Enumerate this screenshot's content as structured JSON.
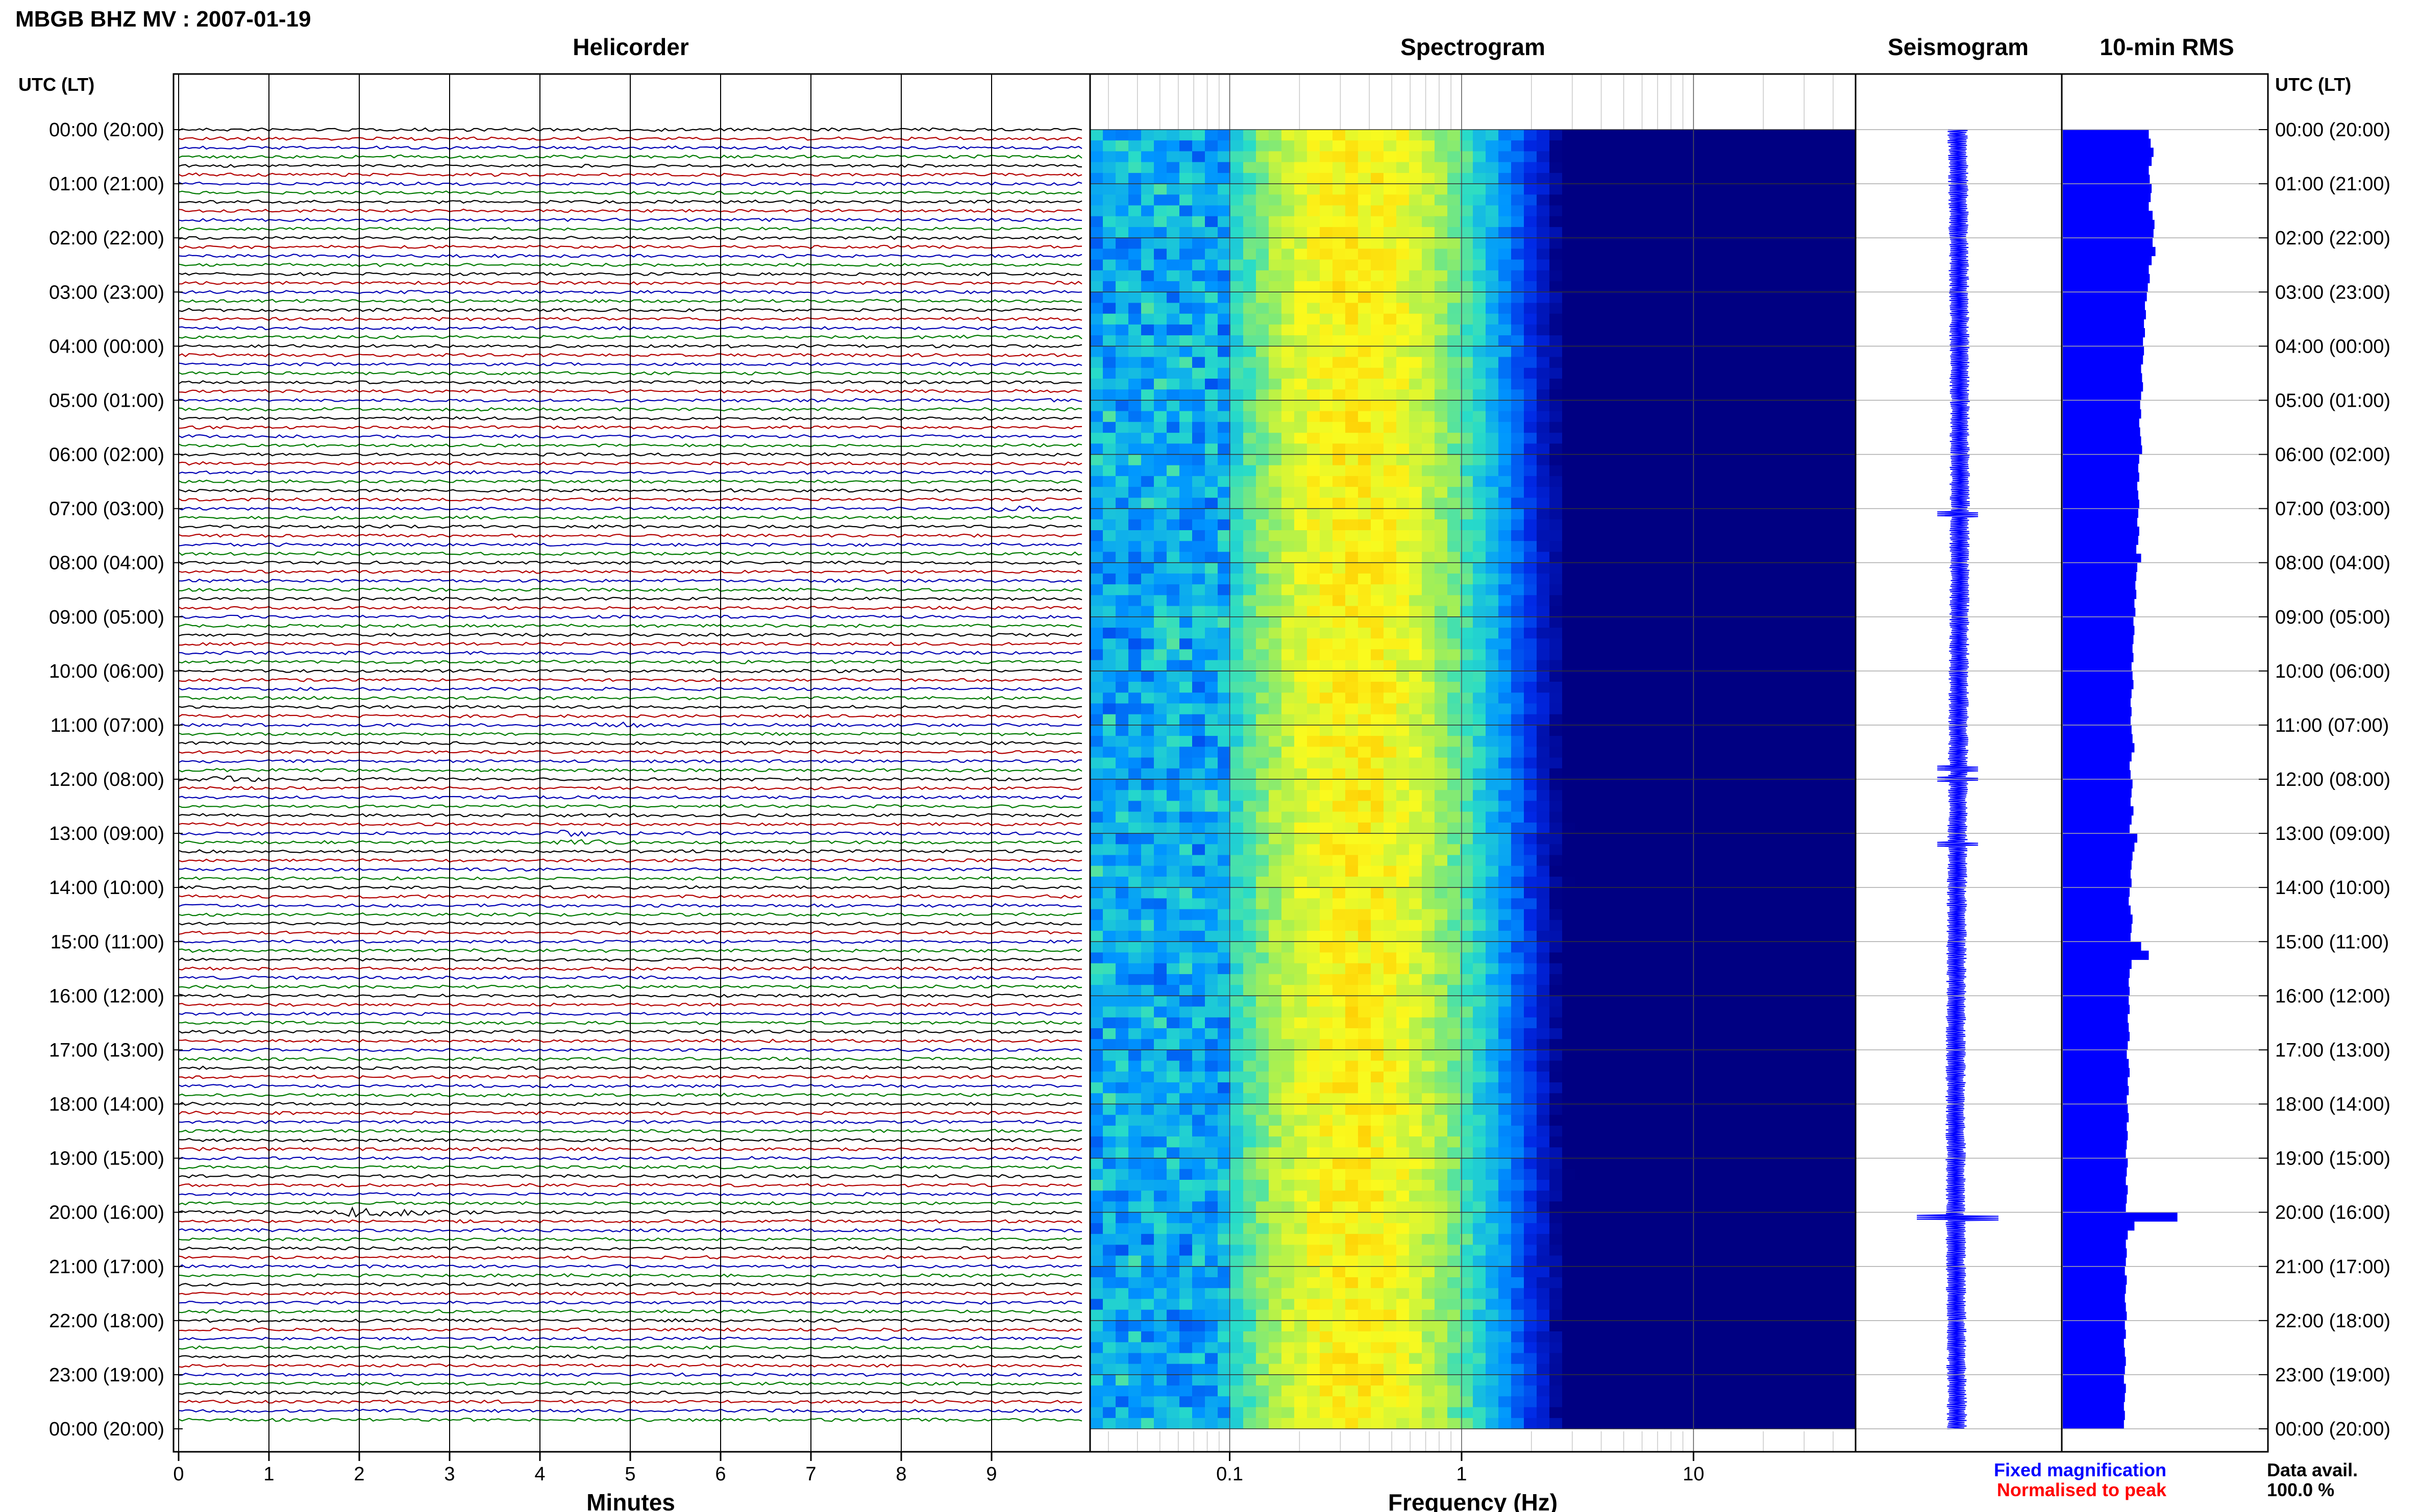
{
  "header": {
    "station_title": "MBGB BHZ MV : 2007-01-19",
    "panel_titles": {
      "helicorder": "Helicorder",
      "spectrogram": "Spectrogram",
      "seismogram": "Seismogram",
      "rms": "10-min RMS"
    },
    "time_axis_label_left": "UTC (LT)",
    "time_axis_label_right": "UTC (LT)"
  },
  "legend": {
    "fixed": "Fixed magnification",
    "normalised": "Normalised to peak",
    "fixed_color": "#0000ff",
    "normalised_color": "#ff0000"
  },
  "data_avail": {
    "label": "Data avail.",
    "value": "100.0 %"
  },
  "colors": {
    "trace_cycle": [
      "#000000",
      "#b30000",
      "#0000b3",
      "#007a00"
    ],
    "rms_bar": "#0000ff",
    "seismogram": "#0000ff"
  },
  "chart_data": [
    {
      "type": "line",
      "name": "helicorder",
      "title": "Helicorder",
      "xlabel": "Minutes",
      "x_ticks": [
        0,
        1,
        2,
        3,
        4,
        5,
        6,
        7,
        8,
        9
      ],
      "xlim": [
        0,
        10
      ],
      "time_ticks": [
        "00:00 (20:00)",
        "01:00 (21:00)",
        "02:00 (22:00)",
        "03:00 (23:00)",
        "04:00 (00:00)",
        "05:00 (01:00)",
        "06:00 (02:00)",
        "07:00 (03:00)",
        "08:00 (04:00)",
        "09:00 (05:00)",
        "10:00 (06:00)",
        "11:00 (07:00)",
        "12:00 (08:00)",
        "13:00 (09:00)",
        "14:00 (10:00)",
        "15:00 (11:00)",
        "16:00 (12:00)",
        "17:00 (13:00)",
        "18:00 (14:00)",
        "19:00 (15:00)",
        "20:00 (16:00)",
        "21:00 (17:00)",
        "22:00 (18:00)",
        "23:00 (19:00)",
        "00:00 (20:00)"
      ],
      "lines_per_hour": 6,
      "events": [
        {
          "hour": 20.05,
          "minute": 2.0,
          "amplitude": 9
        },
        {
          "hour": 11.0,
          "minute": 4.6,
          "amplitude": 4
        },
        {
          "hour": 12.05,
          "minute": 0.5,
          "amplitude": 3
        },
        {
          "hour": 13.1,
          "minute": 4.3,
          "amplitude": 3
        },
        {
          "hour": 7.0,
          "minute": 9.2,
          "amplitude": 3
        },
        {
          "hour": 3.8,
          "minute": 8.7,
          "amplitude": 2
        }
      ]
    },
    {
      "type": "heatmap",
      "name": "spectrogram",
      "title": "Spectrogram",
      "xlabel": "Frequency (Hz)",
      "x_scale": "log",
      "xlim": [
        0.025,
        50
      ],
      "x_ticks": [
        0.1,
        1,
        10
      ],
      "x_tick_labels": [
        "0.1",
        "1",
        "10"
      ],
      "peak_band_hz": [
        0.15,
        0.8
      ]
    },
    {
      "type": "line",
      "name": "seismogram",
      "title": "Seismogram",
      "events_hours": [
        7.1,
        11.8,
        12.0,
        13.2,
        20.1
      ]
    },
    {
      "type": "bar",
      "name": "rms",
      "title": "10-min RMS",
      "orientation": "horizontal",
      "bins": 144,
      "relative_values": [
        0.9,
        0.92,
        0.95,
        0.93,
        0.9,
        0.91,
        0.93,
        0.92,
        0.9,
        0.94,
        0.96,
        0.95,
        0.94,
        0.97,
        0.93,
        0.9,
        0.91,
        0.89,
        0.88,
        0.86,
        0.87,
        0.85,
        0.86,
        0.84,
        0.85,
        0.84,
        0.82,
        0.83,
        0.84,
        0.82,
        0.81,
        0.82,
        0.8,
        0.81,
        0.82,
        0.83,
        0.8,
        0.79,
        0.8,
        0.78,
        0.79,
        0.8,
        0.79,
        0.78,
        0.8,
        0.79,
        0.77,
        0.82,
        0.78,
        0.77,
        0.76,
        0.77,
        0.75,
        0.76,
        0.74,
        0.75,
        0.74,
        0.73,
        0.74,
        0.72,
        0.73,
        0.74,
        0.72,
        0.71,
        0.72,
        0.71,
        0.72,
        0.73,
        0.75,
        0.72,
        0.7,
        0.71,
        0.73,
        0.72,
        0.71,
        0.74,
        0.72,
        0.7,
        0.78,
        0.75,
        0.73,
        0.72,
        0.71,
        0.72,
        0.7,
        0.69,
        0.71,
        0.73,
        0.72,
        0.71,
        0.82,
        0.9,
        0.72,
        0.7,
        0.69,
        0.7,
        0.69,
        0.7,
        0.68,
        0.69,
        0.7,
        0.68,
        0.67,
        0.69,
        0.7,
        0.68,
        0.69,
        0.67,
        0.68,
        0.69,
        0.67,
        0.68,
        0.67,
        0.66,
        0.68,
        0.67,
        0.66,
        0.68,
        0.67,
        0.66,
        1.2,
        0.75,
        0.68,
        0.66,
        0.67,
        0.66,
        0.65,
        0.67,
        0.66,
        0.65,
        0.66,
        0.67,
        0.65,
        0.66,
        0.64,
        0.65,
        0.66,
        0.65,
        0.64,
        0.66,
        0.65,
        0.64,
        0.65,
        0.64
      ]
    }
  ]
}
